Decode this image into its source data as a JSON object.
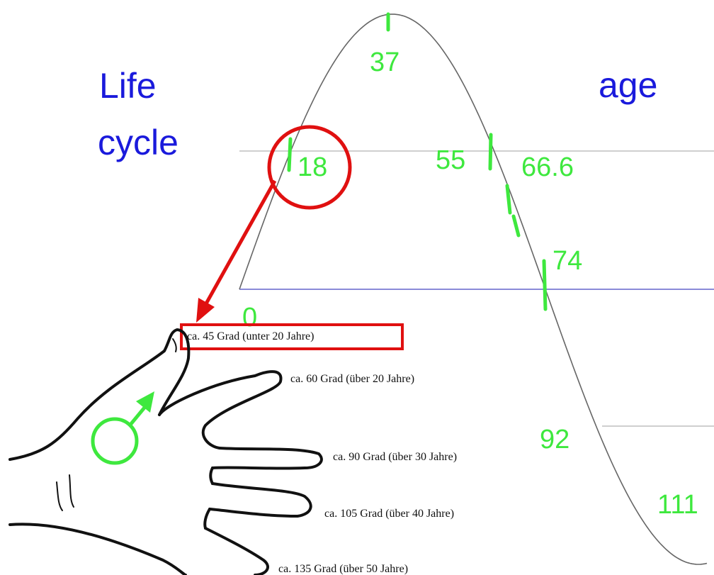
{
  "title_lines": [
    "Life",
    "cycle"
  ],
  "axis_label": "age",
  "age_marks": [
    37,
    18,
    55,
    66.6,
    74,
    0,
    92,
    111
  ],
  "hand_labels": [
    "ca. 45 Grad (unter 20 Jahre)",
    "ca. 60 Grad (über 20 Jahre)",
    "ca. 90 Grad (über 30 Jahre)",
    "ca. 105 Grad (über 40 Jahre)",
    "ca. 135 Grad (über 50 Jahre)"
  ]
}
